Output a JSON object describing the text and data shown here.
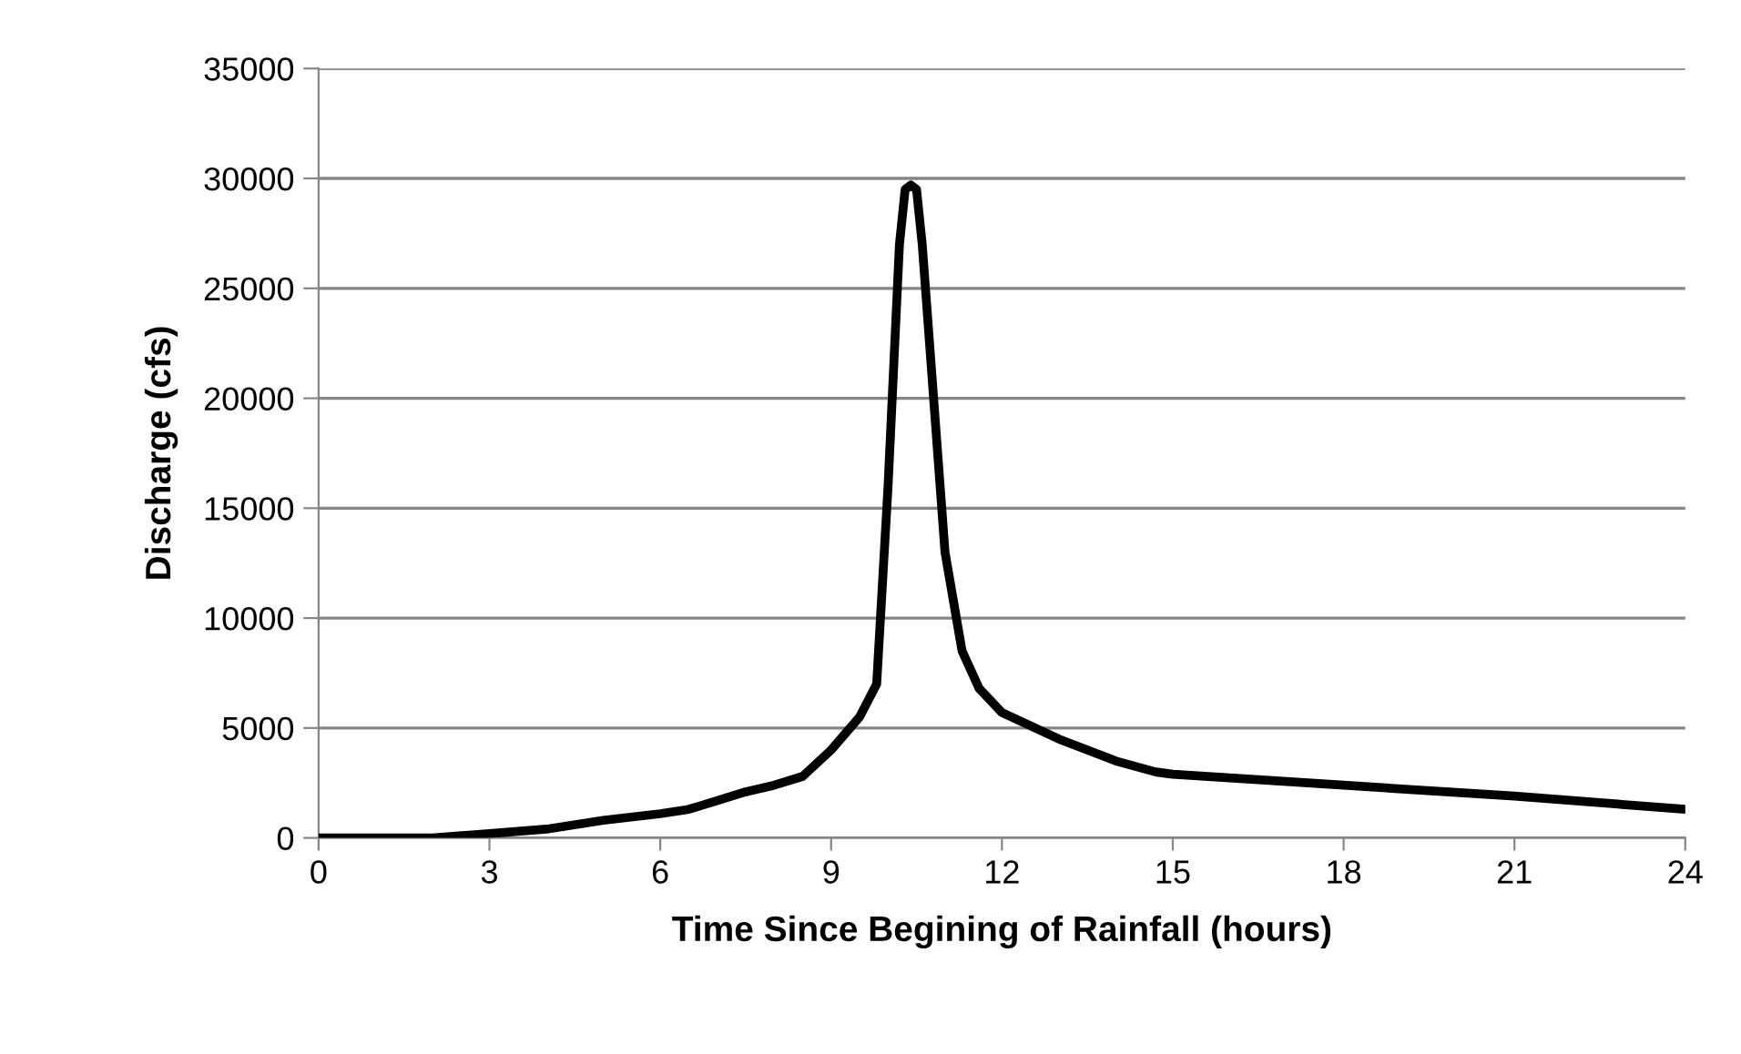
{
  "chart_data": {
    "type": "line",
    "xlabel": "Time Since Begining of Rainfall (hours)",
    "ylabel": "Discharge (cfs)",
    "series": [
      {
        "color": "#000000",
        "x": [
          0,
          1,
          2,
          3,
          4,
          5,
          6,
          6.5,
          7,
          7.5,
          8,
          8.5,
          9,
          9.5,
          9.8,
          10,
          10.2,
          10.3,
          10.4,
          10.5,
          10.6,
          10.8,
          11,
          11.3,
          11.6,
          12,
          13,
          14,
          14.7,
          15,
          18,
          21,
          24
        ],
        "values": [
          0,
          0,
          0,
          200,
          400,
          800,
          1100,
          1300,
          1700,
          2100,
          2400,
          2800,
          4000,
          5500,
          7000,
          16000,
          27000,
          29500,
          29700,
          29500,
          27000,
          20000,
          13000,
          8500,
          6800,
          5700,
          4500,
          3500,
          3000,
          2900,
          2400,
          1900,
          1300
        ]
      }
    ],
    "xlim": [
      0,
      24
    ],
    "xticks": [
      0,
      3,
      6,
      9,
      12,
      15,
      18,
      21,
      24
    ],
    "ylim": [
      0,
      35000
    ],
    "yticks": [
      0,
      5000,
      10000,
      15000,
      20000,
      25000,
      30000,
      35000
    ],
    "grid": "y",
    "legend": false,
    "marker": "none",
    "line_style": "solid"
  }
}
